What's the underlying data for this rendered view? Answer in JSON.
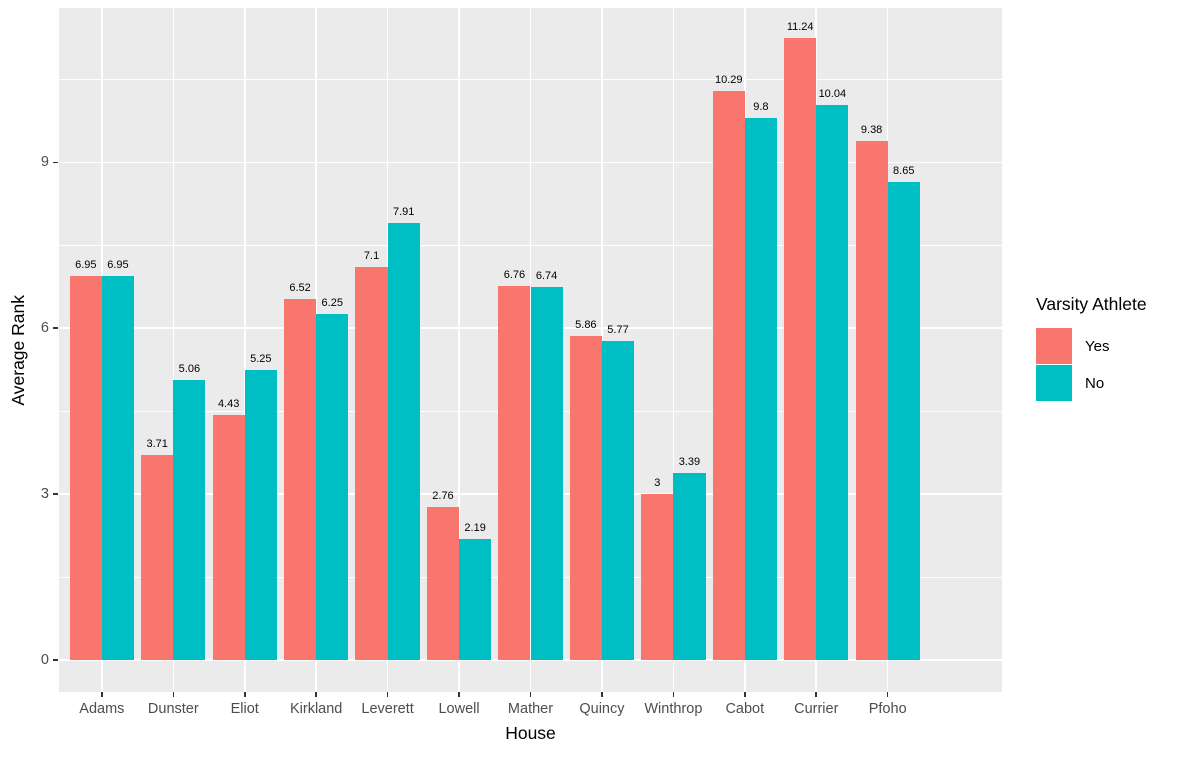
{
  "chart_data": {
    "type": "bar",
    "title": "",
    "xlabel": "House",
    "ylabel": "Average Rank",
    "categories": [
      "Adams",
      "Dunster",
      "Eliot",
      "Kirkland",
      "Leverett",
      "Lowell",
      "Mather",
      "Quincy",
      "Winthrop",
      "Cabot",
      "Currier",
      "Pfoho"
    ],
    "series": [
      {
        "name": "Yes",
        "color": "#F8766D",
        "values": [
          6.95,
          3.71,
          4.43,
          6.52,
          7.1,
          2.76,
          6.76,
          5.86,
          3,
          10.29,
          11.24,
          9.38
        ],
        "labels": [
          "6.95",
          "3.71",
          "4.43",
          "6.52",
          "7.1",
          "2.76",
          "6.76",
          "5.86",
          "3",
          "10.29",
          "11.24",
          "9.38"
        ]
      },
      {
        "name": "No",
        "color": "#00BFC4",
        "values": [
          6.95,
          5.06,
          5.25,
          6.25,
          7.91,
          2.19,
          6.74,
          5.77,
          3.39,
          9.8,
          10.04,
          8.65
        ],
        "labels": [
          "6.95",
          "5.06",
          "5.25",
          "6.25",
          "7.91",
          "2.19",
          "6.74",
          "5.77",
          "3.39",
          "9.8",
          "10.04",
          "8.65"
        ]
      }
    ],
    "y_ticks": [
      0,
      3,
      6,
      9
    ],
    "y_tick_labels": [
      "0",
      "3",
      "6",
      "9"
    ],
    "y_minor_ticks": [
      1.5,
      4.5,
      7.5,
      10.5
    ],
    "ylim": [
      -0.56,
      11.8
    ],
    "grid": "on",
    "legend": {
      "title": "Varsity Athlete",
      "position": "right",
      "entries": [
        "Yes",
        "No"
      ]
    }
  },
  "colors": {
    "panel_bg": "#EBEBEB",
    "grid": "#FFFFFF",
    "tick_label": "#4D4D4D",
    "tick_mark": "#333333",
    "axis_title": "#000000",
    "bar_label": "#000000",
    "background": "#FFFFFF",
    "series_yes": "#F8766D",
    "series_no": "#00BFC4"
  }
}
